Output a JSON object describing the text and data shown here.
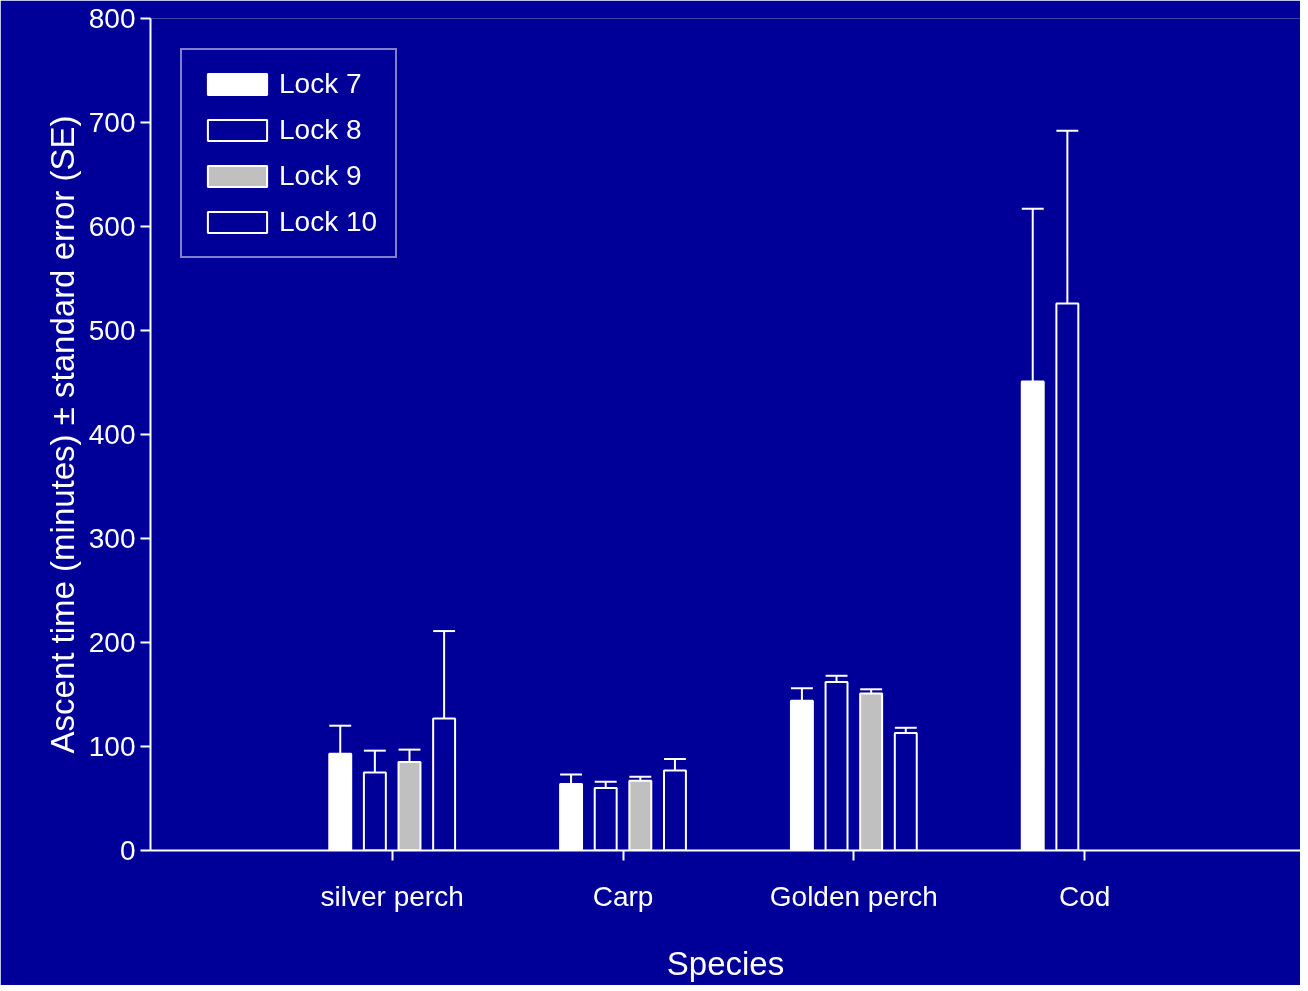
{
  "chart_data": {
    "type": "bar",
    "xlabel": "Species",
    "ylabel": "Ascent time (minutes) ± standard error (SE)",
    "categories": [
      "silver perch",
      "Carp",
      "Golden perch",
      "Cod"
    ],
    "series": [
      {
        "name": "Lock 7",
        "color": "#ffffff",
        "values": [
          93,
          64,
          144,
          451
        ],
        "errors": [
          [
            93,
            120
          ],
          [
            64,
            73
          ],
          [
            144,
            156
          ],
          [
            451,
            617
          ]
        ]
      },
      {
        "name": "Lock 8",
        "color": "#000099",
        "values": [
          75,
          60,
          162,
          526
        ],
        "errors": [
          [
            75,
            96
          ],
          [
            60,
            66
          ],
          [
            162,
            168
          ],
          [
            526,
            692
          ]
        ]
      },
      {
        "name": "Lock 9",
        "color": "#c0c0c0",
        "values": [
          85,
          67,
          151,
          null
        ],
        "errors": [
          [
            85,
            97
          ],
          [
            67,
            71
          ],
          [
            151,
            155
          ],
          null
        ]
      },
      {
        "name": "Lock 10",
        "color": "#000099",
        "values": [
          127,
          77,
          113,
          null
        ],
        "errors": [
          [
            127,
            211
          ],
          [
            77,
            88
          ],
          [
            113,
            118
          ],
          null
        ]
      }
    ],
    "ylim": [
      0,
      800
    ],
    "yticks": [
      0,
      100,
      200,
      300,
      400,
      500,
      600,
      700,
      800
    ],
    "grid": false,
    "legend": "top left"
  }
}
